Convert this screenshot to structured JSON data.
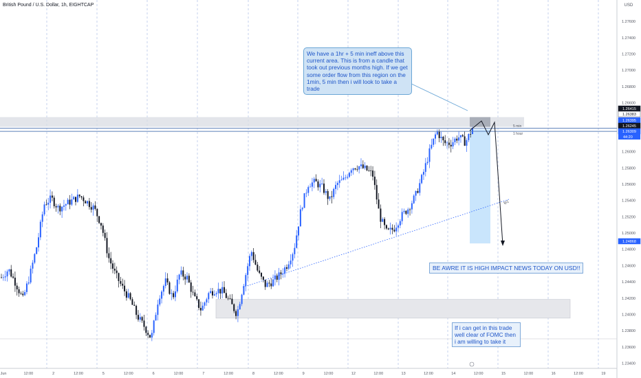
{
  "header": {
    "title": "British Pound / U.S. Dollar, 1h, EIGHTCAP"
  },
  "currency_label": "USD",
  "annotations": {
    "top_note": "We have a 1hr + 5 min ineff above this current area. This is from a candle that took out previous months high. If we get some order flow from this region on the 1min, 5 min then i will look to take a trade",
    "news_note": "BE AWRE IT IS HIGH IMPACT NEWS TODAY ON USD!!",
    "fomc_note": "If i can get in this trade well clear of FOMC then i am willing to take it",
    "line_5min": "5 min",
    "line_1hour": "1 hour",
    "trendline_label": "tp1",
    "countdown": "44:20"
  },
  "price_badges": [
    "1.26415",
    "1.26383",
    "1.26395",
    "1.26245",
    "1.26309",
    "1.24868"
  ],
  "colors": {
    "up": "#2962ff",
    "down": "#131722",
    "zone": "#d9dce3",
    "target": "#bbdefb",
    "accent": "#2962ff"
  },
  "chart_data": {
    "type": "candlestick",
    "title": "British Pound / U.S. Dollar, 1h, EIGHTCAP",
    "ylim": [
      1.234,
      1.278
    ],
    "y_ticks": [
      "1.27600",
      "1.27400",
      "1.27200",
      "1.27000",
      "1.26800",
      "1.26600",
      "1.26400",
      "1.26200",
      "1.26000",
      "1.25800",
      "1.25600",
      "1.25400",
      "1.25200",
      "1.25000",
      "1.24800",
      "1.24600",
      "1.24400",
      "1.24200",
      "1.24000",
      "1.23800",
      "1.23600",
      "1.23400"
    ],
    "x_ticks": [
      "Jun",
      "12:00",
      "2",
      "12:00",
      "5",
      "12:00",
      "6",
      "12:00",
      "7",
      "12:00",
      "8",
      "12:00",
      "9",
      "12:00",
      "12",
      "12:00",
      "13",
      "12:00",
      "14",
      "12:00",
      "15",
      "12:00",
      "16",
      "12:00",
      "19"
    ],
    "price_path": [
      1.2445,
      1.2455,
      1.2438,
      1.2418,
      1.2448,
      1.2485,
      1.2535,
      1.2542,
      1.253,
      1.2535,
      1.254,
      1.2545,
      1.2538,
      1.253,
      1.251,
      1.247,
      1.2448,
      1.2432,
      1.2418,
      1.2398,
      1.2385,
      1.237,
      1.242,
      1.244,
      1.242,
      1.245,
      1.2445,
      1.242,
      1.2405,
      1.2425,
      1.243,
      1.2428,
      1.2415,
      1.24,
      1.244,
      1.2478,
      1.245,
      1.2435,
      1.244,
      1.2448,
      1.246,
      1.248,
      1.253,
      1.256,
      1.2562,
      1.2555,
      1.254,
      1.256,
      1.2565,
      1.258,
      1.2582,
      1.2578,
      1.2572,
      1.252,
      1.25,
      1.2505,
      1.252,
      1.253,
      1.2545,
      1.257,
      1.26,
      1.2625,
      1.261,
      1.261,
      1.2618,
      1.2611,
      1.2628
    ],
    "zones": [
      {
        "name": "inefficiency",
        "from": 1.263,
        "to": 1.2642
      },
      {
        "name": "demand",
        "from": 1.2395,
        "to": 1.2418
      }
    ],
    "lines": [
      {
        "name": "5 min",
        "price": 1.26283
      },
      {
        "name": "1 hour",
        "price": 1.26245
      }
    ],
    "target": {
      "name": "tp1",
      "price": 1.24868
    }
  }
}
